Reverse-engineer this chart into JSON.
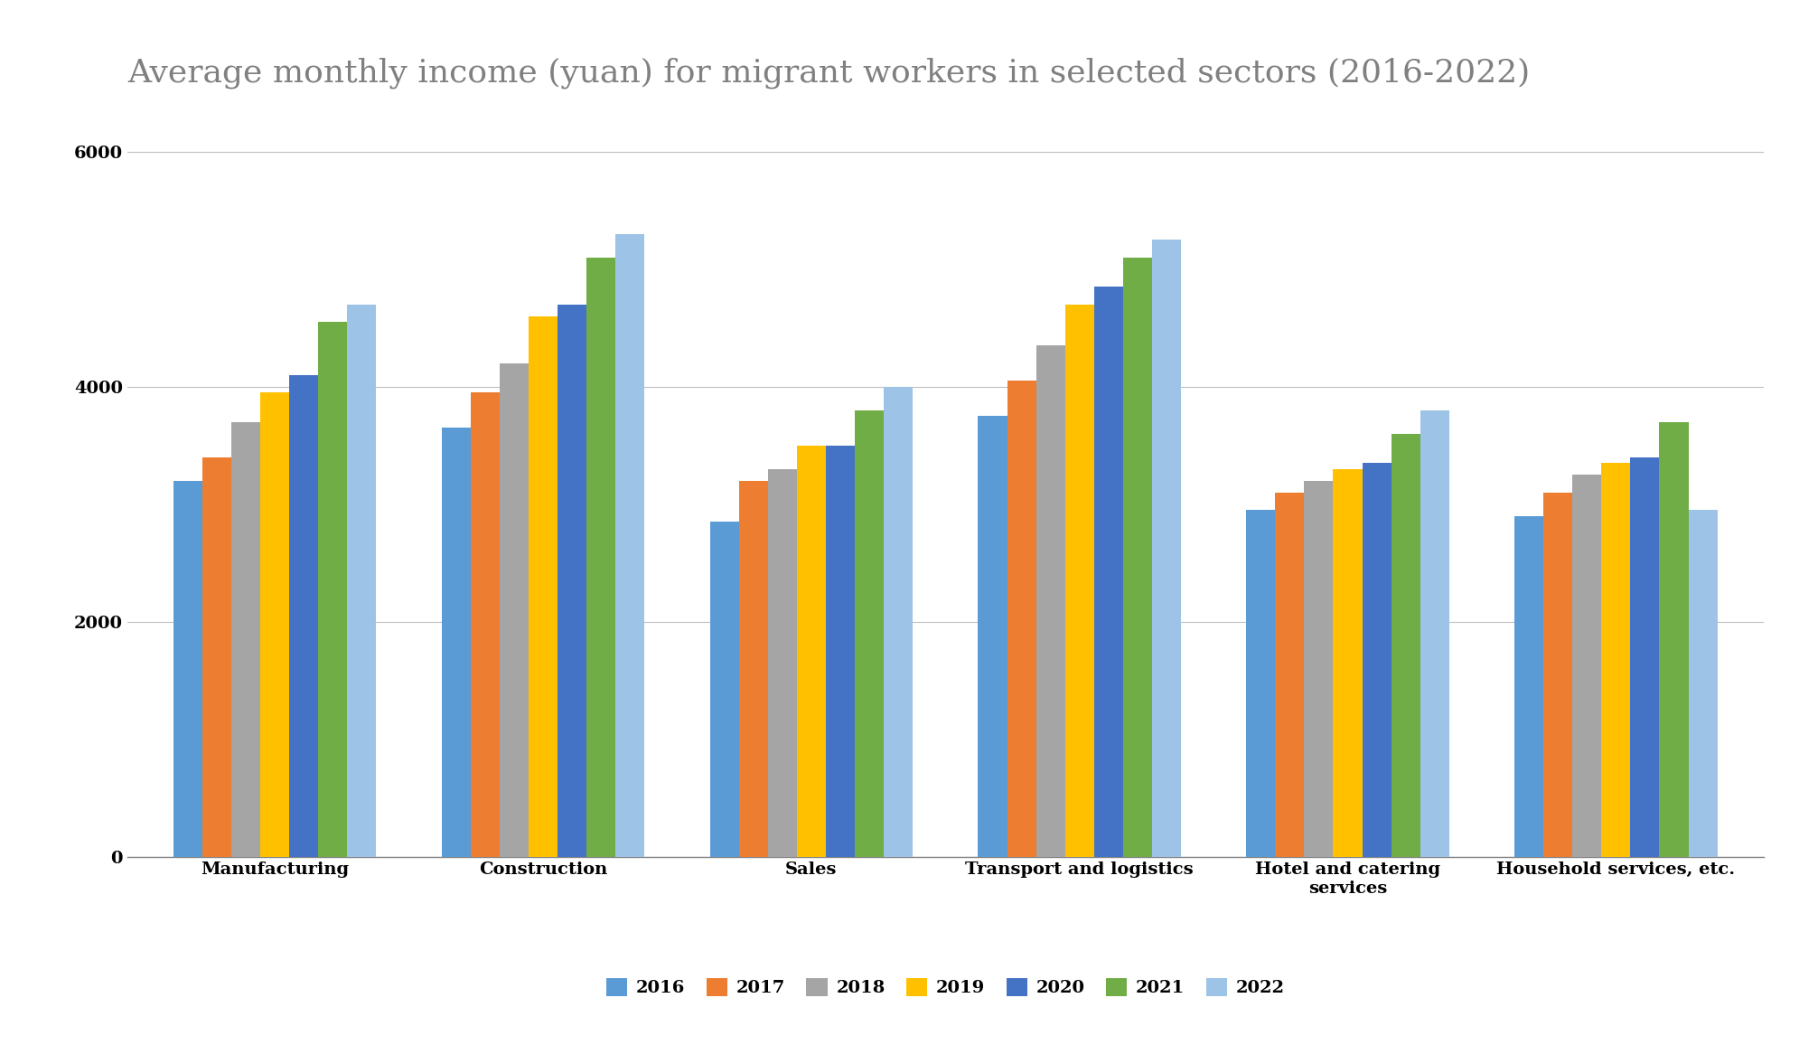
{
  "title": "Average monthly income (yuan) for migrant workers in selected sectors (2016-2022)",
  "categories": [
    "Manufacturing",
    "Construction",
    "Sales",
    "Transport and logistics",
    "Hotel and catering\nservices",
    "Household services, etc."
  ],
  "years": [
    "2016",
    "2017",
    "2018",
    "2019",
    "2020",
    "2021",
    "2022"
  ],
  "values": {
    "Manufacturing": [
      3200,
      3400,
      3700,
      3950,
      4100,
      4550,
      4700
    ],
    "Construction": [
      3650,
      3950,
      4200,
      4600,
      4700,
      5100,
      5300
    ],
    "Sales": [
      2850,
      3200,
      3300,
      3500,
      3500,
      3800,
      4000
    ],
    "Transport and logistics": [
      3750,
      4050,
      4350,
      4700,
      4850,
      5100,
      5250
    ],
    "Hotel and catering\nservices": [
      2950,
      3100,
      3200,
      3300,
      3350,
      3600,
      3800
    ],
    "Household services, etc.": [
      2900,
      3100,
      3250,
      3350,
      3400,
      3700,
      2950
    ]
  },
  "colors": [
    "#5B9BD5",
    "#ED7D31",
    "#A5A5A5",
    "#FFC000",
    "#4472C4",
    "#70AD47",
    "#9DC3E6"
  ],
  "ylim": [
    0,
    6400
  ],
  "yticks": [
    0,
    2000,
    4000,
    6000
  ],
  "background_color": "#FFFFFF",
  "title_fontsize": 26,
  "legend_fontsize": 14,
  "tick_label_fontsize": 14,
  "bar_width": 0.108,
  "grid_color": "#C0C0C0",
  "title_color": "#808080",
  "tick_color": "#000000",
  "legend_text_color": "#000000"
}
